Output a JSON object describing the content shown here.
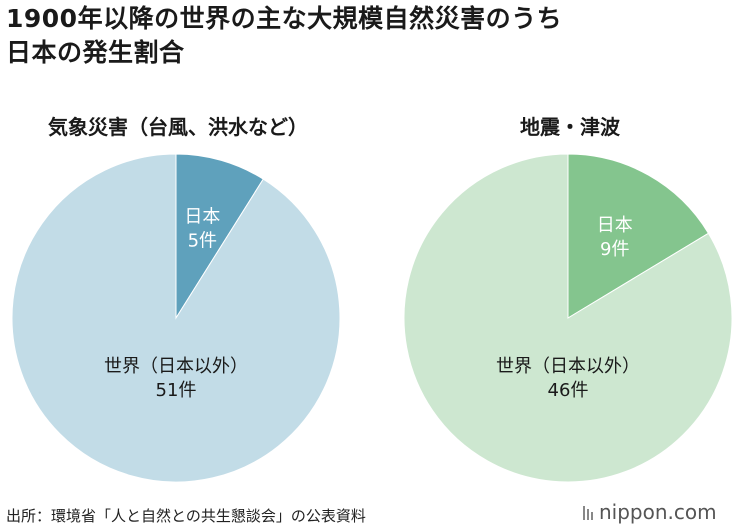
{
  "header": {
    "title_line1": "1900年以降の世界の主な大規模自然災害のうち",
    "title_line2": "日本の発生割合"
  },
  "chart_data": [
    {
      "type": "pie",
      "title": "気象災害（台風、洪水など）",
      "slices": [
        {
          "label_line1": "日本",
          "label_line2": "5件",
          "value": 5,
          "color": "#5fa1bc"
        },
        {
          "label_line1": "世界（日本以外）",
          "label_line2": "51件",
          "value": 51,
          "color": "#c2dce7"
        }
      ]
    },
    {
      "type": "pie",
      "title": "地震・津波",
      "slices": [
        {
          "label_line1": "日本",
          "label_line2": "9件",
          "value": 9,
          "color": "#84c58e"
        },
        {
          "label_line1": "世界（日本以外）",
          "label_line2": "46件",
          "value": 46,
          "color": "#cde7d0"
        }
      ]
    }
  ],
  "footer": {
    "source": "出所：環境省「人と自然との共生懇談会」の公表資料",
    "logo": "nippon.com"
  }
}
